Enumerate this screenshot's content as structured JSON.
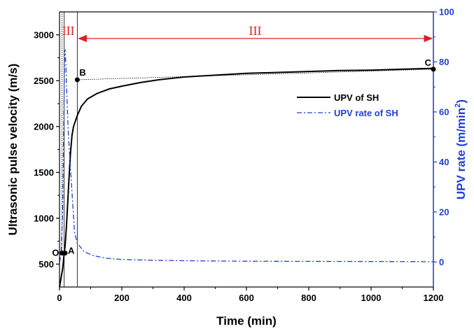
{
  "chart_data": {
    "type": "line",
    "xlabel": "Time (min)",
    "ylabel": "Ultrasonic pulse velocity (m/s)",
    "y2label_main": "UPV rate (m/min",
    "y2label_sup": "2",
    "y2label_close": ")",
    "xlim": [
      0,
      1200
    ],
    "ylim": [
      250,
      3250
    ],
    "y2lim": [
      -10,
      100
    ],
    "xticks": [
      0,
      200,
      400,
      600,
      800,
      1000,
      1200
    ],
    "yticks": [
      500,
      1000,
      1500,
      2000,
      2500,
      3000
    ],
    "y2ticks": [
      0,
      20,
      40,
      60,
      80,
      100
    ],
    "grid": false,
    "legend_position": "center-right",
    "colors": {
      "primary": "#000000",
      "secondary": "#1f3fd6",
      "region": "#e02020"
    },
    "series": [
      {
        "name": "UPV of SH",
        "axis": "left",
        "style": "solid",
        "x": [
          0,
          10,
          15,
          18,
          22,
          26,
          30,
          35,
          40,
          45,
          50,
          57,
          70,
          90,
          120,
          160,
          200,
          260,
          320,
          400,
          500,
          600,
          700,
          800,
          900,
          1000,
          1100,
          1200
        ],
        "y": [
          250,
          450,
          620,
          700,
          900,
          1150,
          1400,
          1700,
          1900,
          2000,
          2050,
          2120,
          2220,
          2300,
          2360,
          2410,
          2440,
          2480,
          2510,
          2540,
          2560,
          2580,
          2590,
          2600,
          2610,
          2615,
          2625,
          2635
        ]
      },
      {
        "name": "UPV rate of SH",
        "axis": "right",
        "style": "dash-dot",
        "x": [
          0,
          5,
          10,
          13,
          16,
          18,
          20,
          24,
          28,
          34,
          40,
          48,
          57,
          80,
          110,
          150,
          200,
          300,
          400,
          600,
          800,
          1000,
          1200
        ],
        "y": [
          0,
          3,
          20,
          50,
          80,
          85,
          80,
          65,
          52,
          40,
          28,
          12,
          7.5,
          4,
          2.5,
          1.5,
          1,
          0.7,
          0.5,
          0.3,
          0.25,
          0.2,
          0.1
        ]
      }
    ],
    "points": [
      {
        "label": "O",
        "x": 8,
        "y": 620
      },
      {
        "label": "A",
        "x": 18,
        "y": 620
      },
      {
        "label": "B",
        "x": 57,
        "y": 2510
      },
      {
        "label": "C",
        "x": 1200,
        "y": 2625
      }
    ],
    "regions": [
      {
        "label": "I",
        "x": 15
      },
      {
        "label": "II",
        "x": 35
      },
      {
        "label": "III",
        "x": 628
      }
    ],
    "region_boundaries_x": [
      15,
      57
    ],
    "region_arrow_x": [
      57,
      1200
    ]
  }
}
